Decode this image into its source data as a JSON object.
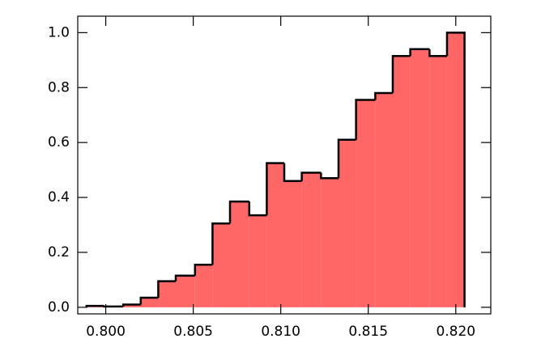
{
  "chart_data": {
    "type": "histogram",
    "bins": [
      0.7989,
      0.7999,
      0.801,
      0.802,
      0.803,
      0.804,
      0.8051,
      0.8061,
      0.8071,
      0.8082,
      0.8092,
      0.8102,
      0.8112,
      0.8123,
      0.8133,
      0.8143,
      0.8154,
      0.8164,
      0.8174,
      0.8185,
      0.8195,
      0.8205
    ],
    "values": [
      0.005,
      0.003,
      0.01,
      0.035,
      0.095,
      0.115,
      0.155,
      0.305,
      0.385,
      0.335,
      0.525,
      0.46,
      0.49,
      0.47,
      0.61,
      0.755,
      0.78,
      0.915,
      0.94,
      0.915,
      1.0
    ],
    "color": "#ff6666",
    "xlim": [
      0.7984,
      0.822
    ],
    "ylim": [
      -0.024,
      1.06
    ],
    "xticks": [
      {
        "value": 0.8,
        "label": "0.800"
      },
      0.805,
      {
        "value": 0.81,
        "label": "0.810"
      },
      0.815,
      {
        "value": 0.82,
        "label": "0.820"
      }
    ],
    "yticks": [
      {
        "value": 0,
        "label": "0.0"
      },
      0.2,
      0.4,
      0.6,
      0.8,
      {
        "value": 1,
        "label": "1.0"
      }
    ]
  }
}
